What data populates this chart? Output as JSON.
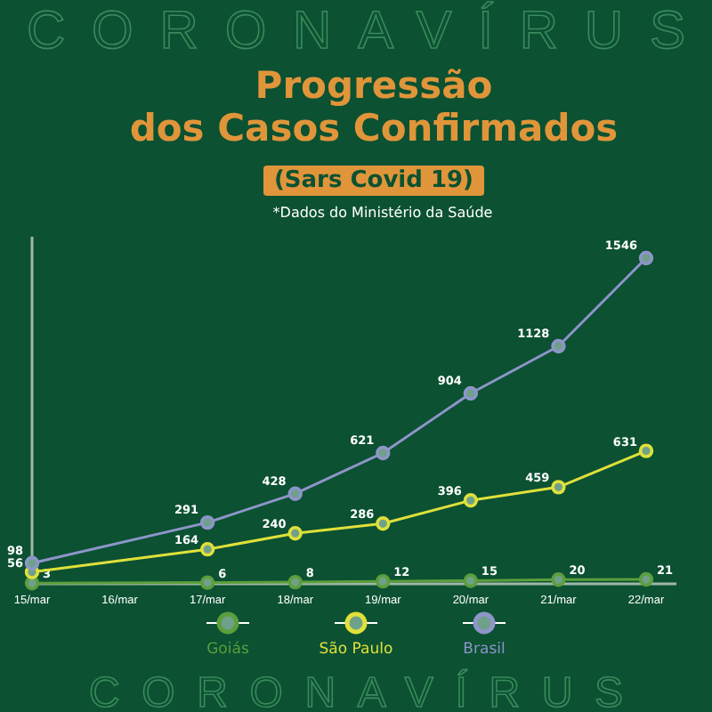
{
  "chart_data": {
    "type": "line",
    "title": "Progressão dos Casos Confirmados",
    "subtitle": "(Sars Covid 19)",
    "annotations": [
      "CORONAVÍRUS",
      "*Dados do Ministério da Saúde",
      "CORONAVÍRUS"
    ],
    "categories": [
      "15/mar",
      "16/mar",
      "17/mar",
      "18/mar",
      "19/mar",
      "20/mar",
      "21/mar",
      "22/mar"
    ],
    "tick_labels": "x",
    "legend": "bottom",
    "marker": "circle",
    "line_style": "solid",
    "data_labels": true,
    "series": [
      {
        "name": "Goiás",
        "color": "#5c9e3c",
        "values": [
          3,
          null,
          6,
          8,
          12,
          15,
          20,
          21
        ]
      },
      {
        "name": "São Paulo",
        "color": "#dfe03a",
        "values": [
          56,
          null,
          164,
          240,
          286,
          396,
          459,
          631
        ]
      },
      {
        "name": "Brasil",
        "color": "#8e95c9",
        "values": [
          98,
          null,
          291,
          428,
          621,
          904,
          1128,
          1546
        ]
      }
    ]
  }
}
